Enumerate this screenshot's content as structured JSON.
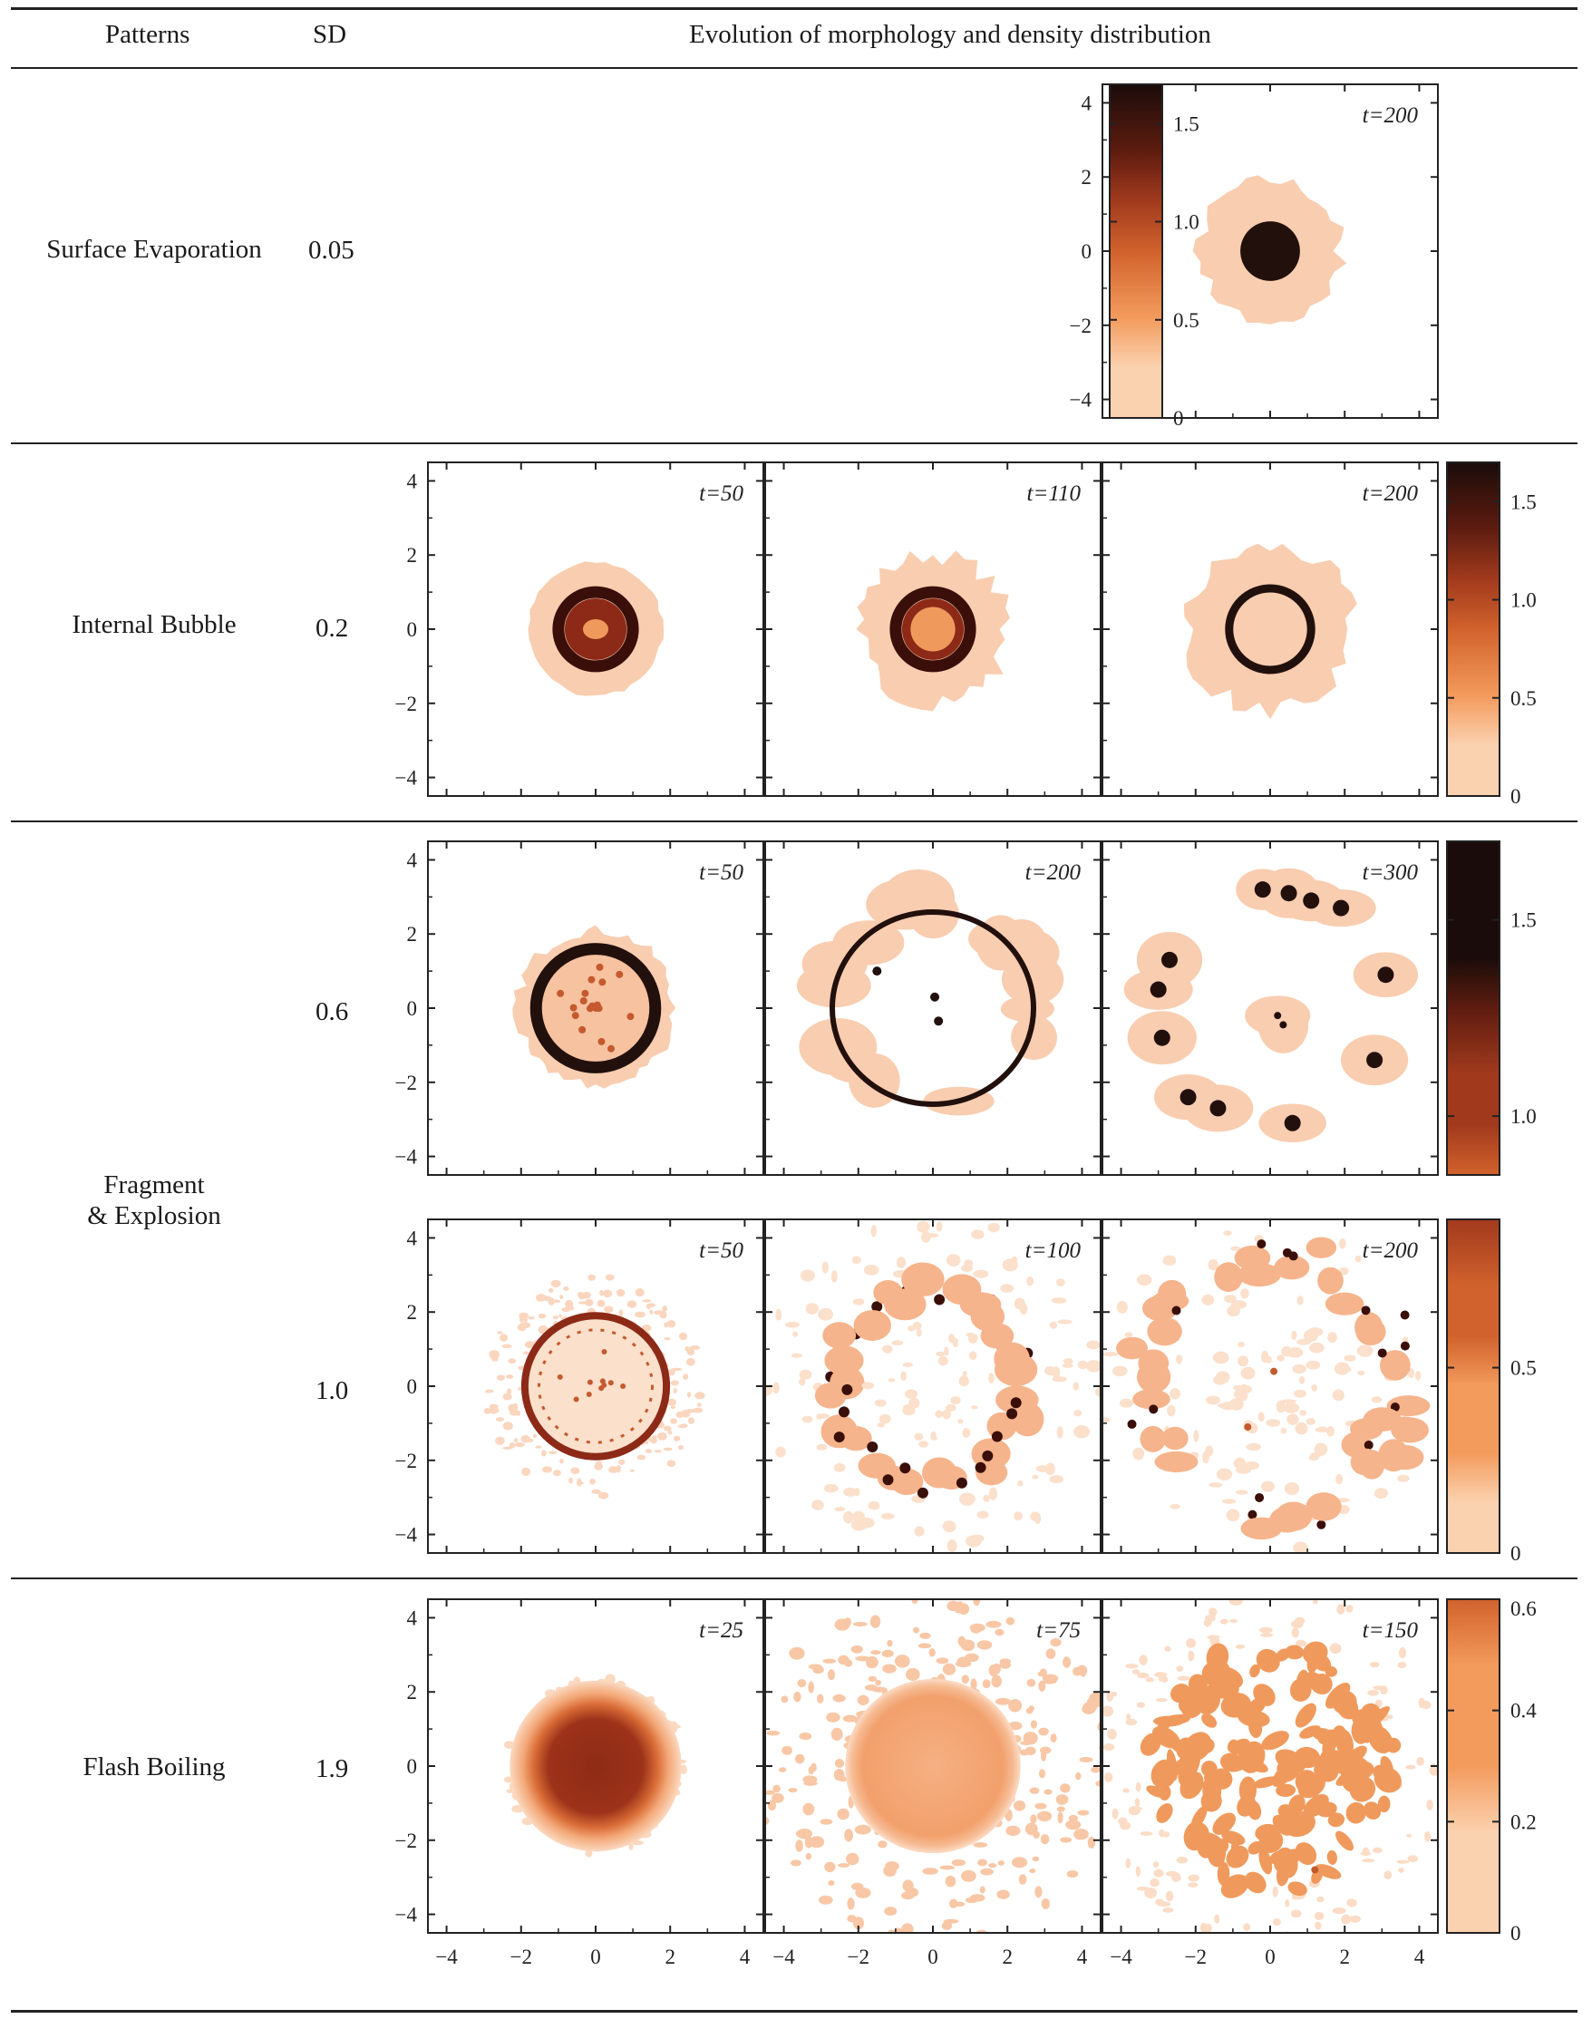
{
  "header": {
    "patterns": "Patterns",
    "sd": "SD",
    "evolution": "Evolution of morphology and density distribution"
  },
  "tick_labels": [
    "4",
    "2",
    "0",
    "−2",
    "−4"
  ],
  "x_tick_labels": [
    "−4",
    "−2",
    "0",
    "2",
    "4"
  ],
  "rows": [
    {
      "pattern": "Surface Evaporation",
      "sd": "0.05",
      "panels": [
        {
          "col": 2,
          "time_label": "t=200",
          "shape": "core",
          "core_r": 0.8,
          "halo_r": 1.9
        }
      ],
      "colorbar": {
        "ticks": [
          "1.5",
          "1.0",
          "0.5",
          "0"
        ],
        "values": [
          1.5,
          1.0,
          0.5,
          0
        ],
        "range": [
          0,
          1.7
        ]
      }
    },
    {
      "pattern": "Internal Bubble",
      "sd": "0.2",
      "panels": [
        {
          "col": 0,
          "time_label": "t=50",
          "shape": "ring-filled",
          "ring_r": 1.0,
          "halo_r": 1.8
        },
        {
          "col": 1,
          "time_label": "t=110",
          "shape": "ring-core",
          "ring_r": 1.0,
          "halo_r": 2.0
        },
        {
          "col": 2,
          "time_label": "t=200",
          "shape": "ring-hollow",
          "ring_r": 1.1,
          "halo_r": 2.2
        }
      ],
      "colorbar": {
        "ticks": [
          "1.5",
          "1.0",
          "0.5",
          "0"
        ],
        "values": [
          1.5,
          1.0,
          0.5,
          0
        ],
        "range": [
          0,
          1.7
        ]
      }
    },
    {
      "pattern": "Fragment\n& Explosion",
      "sd": "0.6",
      "panels": [
        {
          "col": 0,
          "time_label": "t=50",
          "shape": "ring-dots",
          "ring_r": 1.6,
          "halo_r": 2.1
        },
        {
          "col": 1,
          "time_label": "t=200",
          "shape": "big-ring",
          "ring_r": 2.7,
          "halo_r": 3.1
        },
        {
          "col": 2,
          "time_label": "t=300",
          "shape": "droplets",
          "ring_r": 3.1,
          "halo_r": 3.4
        }
      ],
      "colorbar": {
        "ticks": [
          "1.5",
          "1.0"
        ],
        "values": [
          1.5,
          1.0
        ],
        "range": [
          0.85,
          1.7
        ]
      }
    },
    {
      "pattern": "",
      "sd": "1.0",
      "panels": [
        {
          "col": 0,
          "time_label": "t=50",
          "shape": "ring-spray",
          "ring_r": 1.9,
          "halo_r": 3.0
        },
        {
          "col": 1,
          "time_label": "t=100",
          "shape": "dot-ring",
          "ring_r": 2.5,
          "halo_r": 3.0
        },
        {
          "col": 2,
          "time_label": "t=200",
          "shape": "scatter",
          "ring_r": 3.5,
          "halo_r": 4.0
        }
      ],
      "colorbar": {
        "ticks": [
          "0.5",
          "0"
        ],
        "values": [
          0.5,
          0
        ],
        "range": [
          0,
          0.9
        ]
      }
    },
    {
      "pattern": "Flash Boiling",
      "sd": "1.9",
      "panels": [
        {
          "col": 0,
          "time_label": "t=25",
          "shape": "blob",
          "core_r": 1.4,
          "halo_r": 2.4
        },
        {
          "col": 1,
          "time_label": "t=75",
          "shape": "fuzzy-disk",
          "core_r": 2.1,
          "halo_r": 4.0
        },
        {
          "col": 2,
          "time_label": "t=150",
          "shape": "patches",
          "core_r": 3.0,
          "halo_r": 4.0
        }
      ],
      "colorbar": {
        "ticks": [
          "0.6",
          "0.4",
          "0.2",
          "0"
        ],
        "values": [
          0.6,
          0.4,
          0.2,
          0
        ],
        "range": [
          0,
          0.6
        ]
      }
    }
  ]
}
